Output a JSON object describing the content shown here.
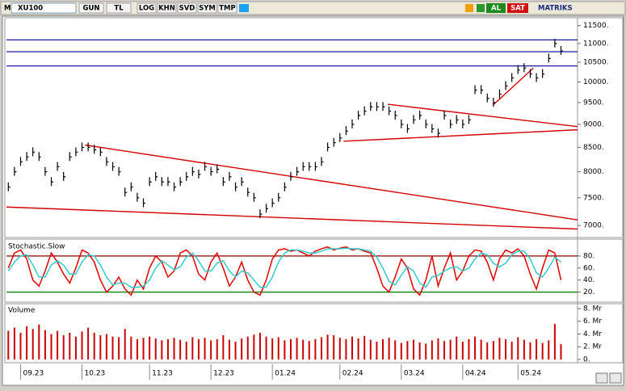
{
  "toolbar": {
    "symbol_prefix": "M",
    "symbol": "XU100",
    "period": "GUN",
    "currency": "TL",
    "buttons": [
      "LOG",
      "KHN",
      "SVD",
      "SYM",
      "TMP"
    ],
    "buy": "AL",
    "sell": "SAT",
    "brand": "MATRIKS"
  },
  "chart_data": [
    {
      "type": "price",
      "log_scale": true,
      "color": "#000000",
      "values": [
        7700,
        8000,
        8200,
        8300,
        8400,
        8300,
        8000,
        7800,
        8100,
        7900,
        8300,
        8400,
        8500,
        8500,
        8450,
        8400,
        8200,
        8100,
        8000,
        7600,
        7700,
        7500,
        7400,
        7800,
        7900,
        7800,
        7800,
        7700,
        7800,
        7900,
        8000,
        7950,
        8100,
        8000,
        8050,
        7800,
        7900,
        7700,
        7800,
        7600,
        7500,
        7200,
        7300,
        7400,
        7500,
        7700,
        7900,
        8000,
        8100,
        8100,
        8100,
        8200,
        8500,
        8600,
        8700,
        8850,
        9000,
        9200,
        9300,
        9400,
        9400,
        9400,
        9300,
        9200,
        9000,
        8900,
        9100,
        9200,
        9000,
        8900,
        8800,
        9200,
        9000,
        9100,
        9000,
        9100,
        9800,
        9800,
        9600,
        9500,
        9700,
        9900,
        10100,
        10300,
        10350,
        10200,
        10100,
        10200,
        10600,
        11000,
        10800
      ],
      "xlim": [
        -0.3,
        92.7
      ],
      "xticks": [
        {
          "value": 2,
          "label": "09.23"
        },
        {
          "value": 12,
          "label": "10.23"
        },
        {
          "value": 23,
          "label": "11.23"
        },
        {
          "value": 33,
          "label": "12.23"
        },
        {
          "value": 43,
          "label": "01.24"
        },
        {
          "value": 54,
          "label": "02.24"
        },
        {
          "value": 64,
          "label": "03.24"
        },
        {
          "value": 74,
          "label": "04.24"
        },
        {
          "value": 83,
          "label": "05.24"
        }
      ],
      "ylim": [
        6850,
        11680
      ],
      "yticks": [
        {
          "value": 11500,
          "label": "11500."
        },
        {
          "value": 11000,
          "label": "11000."
        },
        {
          "value": 10500,
          "label": "10500."
        },
        {
          "value": 10000,
          "label": "10000."
        },
        {
          "value": 9500,
          "label": "9500."
        },
        {
          "value": 9000,
          "label": "9000."
        },
        {
          "value": 8500,
          "label": "8500."
        },
        {
          "value": 8000,
          "label": "8000."
        },
        {
          "value": 7500,
          "label": "7500."
        },
        {
          "value": 7000,
          "label": "7000."
        }
      ],
      "hlines": [
        11100,
        10780,
        10405
      ],
      "hline_color": "#1a1aa0",
      "lines": [
        {
          "x": [
            12.5,
            92.7
          ],
          "y": [
            8550,
            7100
          ]
        },
        {
          "x": [
            -0.3,
            92.7
          ],
          "y": [
            7330,
            6940
          ]
        },
        {
          "x": [
            61.8,
            92.7
          ],
          "y": [
            9460,
            8950
          ]
        },
        {
          "x": [
            54.6,
            92.7
          ],
          "y": [
            8630,
            8880
          ]
        },
        {
          "x": [
            79,
            85.5
          ],
          "y": [
            9450,
            10350
          ]
        }
      ],
      "line_color": "#d40000"
    },
    {
      "type": "line",
      "title": "Stochastic.Slow",
      "series": [
        {
          "color": "#e00000",
          "values": [
            60,
            85,
            90,
            75,
            40,
            30,
            55,
            85,
            70,
            50,
            35,
            60,
            90,
            85,
            70,
            40,
            20,
            30,
            45,
            25,
            15,
            40,
            25,
            60,
            80,
            70,
            45,
            55,
            85,
            90,
            80,
            50,
            40,
            70,
            85,
            60,
            30,
            45,
            70,
            40,
            20,
            15,
            40,
            75,
            90,
            92,
            88,
            90,
            85,
            80,
            88,
            92,
            95,
            90,
            93,
            95,
            90,
            92,
            88,
            85,
            60,
            30,
            20,
            45,
            75,
            60,
            25,
            15,
            40,
            80,
            30,
            60,
            85,
            40,
            55,
            80,
            90,
            88,
            70,
            40,
            75,
            90,
            85,
            92,
            80,
            50,
            25,
            60,
            90,
            85,
            40
          ]
        },
        {
          "color": "#33cccc",
          "values": [
            55,
            70,
            80,
            82,
            65,
            45,
            45,
            65,
            72,
            65,
            50,
            50,
            70,
            82,
            80,
            65,
            45,
            32,
            35,
            35,
            28,
            28,
            30,
            40,
            60,
            72,
            65,
            57,
            62,
            78,
            85,
            72,
            55,
            55,
            68,
            72,
            55,
            45,
            55,
            52,
            40,
            28,
            28,
            45,
            70,
            85,
            90,
            90,
            88,
            85,
            85,
            88,
            92,
            92,
            92,
            93,
            92,
            92,
            90,
            88,
            78,
            60,
            38,
            32,
            48,
            62,
            55,
            35,
            28,
            45,
            48,
            55,
            60,
            62,
            55,
            60,
            75,
            85,
            82,
            68,
            62,
            68,
            82,
            88,
            88,
            75,
            52,
            45,
            60,
            78,
            70
          ]
        }
      ],
      "ylim": [
        6,
        104
      ],
      "yticks": [
        {
          "value": 80,
          "label": "80."
        },
        {
          "value": 60,
          "label": "60."
        },
        {
          "value": 40,
          "label": "40."
        },
        {
          "value": 20,
          "label": "20."
        }
      ],
      "levels": [
        {
          "value": 80,
          "color": "#8b0000"
        },
        {
          "value": 20,
          "color": "#008000"
        }
      ]
    },
    {
      "type": "bar",
      "title": "Volume",
      "color": "#cc0000",
      "values": [
        4.5,
        5,
        4.2,
        5.2,
        4.8,
        5.5,
        4.6,
        4,
        4.5,
        3.8,
        4.2,
        3.6,
        4.4,
        5,
        4.2,
        3.8,
        4,
        3.6,
        3.5,
        4.8,
        3.6,
        3.2,
        3.4,
        3.6,
        3.3,
        3,
        3.2,
        3.4,
        3.1,
        2.8,
        3.5,
        3.2,
        3.4,
        3,
        3.2,
        3.8,
        3.1,
        2.8,
        3.3,
        3.6,
        3.9,
        4.2,
        3.6,
        3.3,
        3.5,
        3,
        3.2,
        3.4,
        3.1,
        2.9,
        3.2,
        3.5,
        3.9,
        3.8,
        3.4,
        3.2,
        3.6,
        3.3,
        3.7,
        3.1,
        2.8,
        3.2,
        3.4,
        3,
        2.6,
        2.9,
        3.1,
        2.7,
        2.5,
        3,
        3.3,
        2.9,
        3.1,
        3.6,
        2.8,
        3.2,
        3.6,
        3.1,
        2.7,
        2.9,
        3.4,
        3.2,
        2.8,
        3.5,
        3.1,
        2.7,
        3.2,
        2.6,
        3,
        5.6,
        2.4
      ],
      "ylim": [
        0,
        8.5
      ],
      "yticks": [
        {
          "value": 8,
          "label": "8. Mr"
        },
        {
          "value": 6,
          "label": "6. Mr"
        },
        {
          "value": 4,
          "label": "4. Mr"
        },
        {
          "value": 2,
          "label": "2. Mr"
        },
        {
          "value": 0,
          "label": "0."
        }
      ]
    }
  ]
}
